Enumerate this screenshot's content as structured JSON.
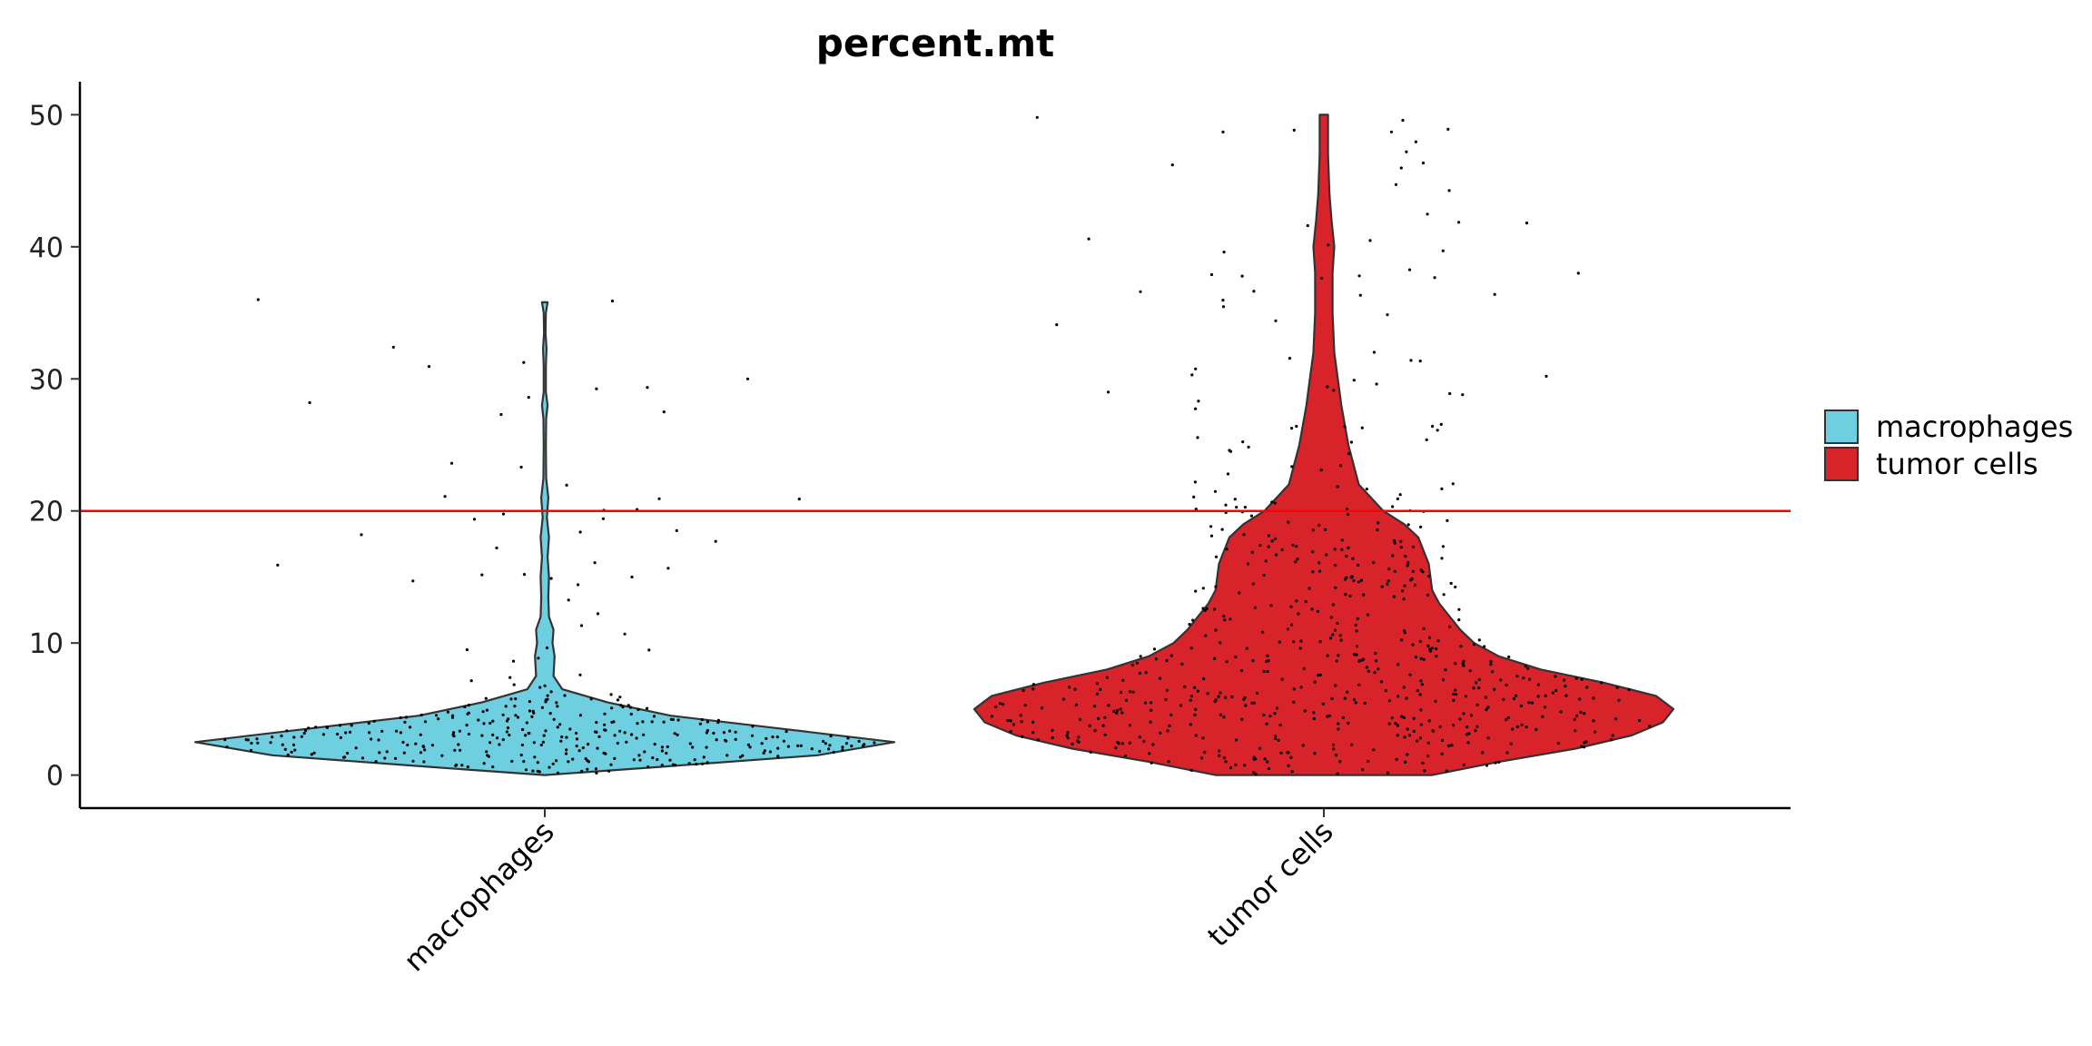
{
  "chart_data": {
    "type": "violin",
    "title": "percent.mt",
    "xlabel": "",
    "ylabel": "",
    "ylim": [
      -2.5,
      52.5
    ],
    "yticks": [
      0,
      10,
      20,
      30,
      40,
      50
    ],
    "categories": [
      "macrophages",
      "tumor cells"
    ],
    "threshold": {
      "value": 20,
      "color": "#ff0000"
    },
    "legend": {
      "position": "right",
      "entries": [
        "macrophages",
        "tumor cells"
      ]
    },
    "grid": false,
    "series": [
      {
        "name": "macrophages",
        "color": "#6dcfe0",
        "violin_profile": [
          [
            0,
            0.0
          ],
          [
            0.6,
            0.32
          ],
          [
            1.5,
            0.78
          ],
          [
            2.5,
            1.0
          ],
          [
            3.5,
            0.68
          ],
          [
            4.5,
            0.36
          ],
          [
            5.5,
            0.18
          ],
          [
            6.5,
            0.05
          ],
          [
            7.5,
            0.025
          ],
          [
            9,
            0.028
          ],
          [
            10,
            0.022
          ],
          [
            11,
            0.025
          ],
          [
            12,
            0.012
          ],
          [
            13.5,
            0.01
          ],
          [
            15,
            0.012
          ],
          [
            16.5,
            0.008
          ],
          [
            18,
            0.012
          ],
          [
            19.5,
            0.006
          ],
          [
            21,
            0.01
          ],
          [
            22.5,
            0.004
          ],
          [
            25,
            0.003
          ],
          [
            27,
            0.004
          ],
          [
            28,
            0.008
          ],
          [
            29,
            0.003
          ],
          [
            31,
            0.003
          ],
          [
            32.3,
            0.005
          ],
          [
            33.5,
            0.002
          ],
          [
            35,
            0.003
          ],
          [
            35.8,
            0.008
          ]
        ],
        "points_summary": {
          "n": 350,
          "median": 3,
          "max": 36,
          "outliers": [
            36.0,
            35.9,
            32.4,
            30.0,
            28.6,
            28.2,
            27.5,
            21.1,
            20.9,
            18.4,
            18.2,
            17.7,
            17.2,
            15.9,
            15.0,
            14.7
          ]
        }
      },
      {
        "name": "tumor cells",
        "color": "#d9232b",
        "violin_profile": [
          [
            0,
            0.31
          ],
          [
            1,
            0.5
          ],
          [
            2,
            0.72
          ],
          [
            3,
            0.88
          ],
          [
            4,
            0.97
          ],
          [
            5,
            1.0
          ],
          [
            6,
            0.95
          ],
          [
            7,
            0.8
          ],
          [
            8,
            0.62
          ],
          [
            9,
            0.5
          ],
          [
            10,
            0.43
          ],
          [
            11,
            0.39
          ],
          [
            12,
            0.36
          ],
          [
            13,
            0.33
          ],
          [
            14,
            0.31
          ],
          [
            16,
            0.3
          ],
          [
            18,
            0.27
          ],
          [
            19,
            0.23
          ],
          [
            20,
            0.17
          ],
          [
            22,
            0.1
          ],
          [
            25,
            0.07
          ],
          [
            28,
            0.05
          ],
          [
            30,
            0.04
          ],
          [
            32,
            0.03
          ],
          [
            35,
            0.025
          ],
          [
            38,
            0.025
          ],
          [
            40,
            0.03
          ],
          [
            42,
            0.022
          ],
          [
            44,
            0.016
          ],
          [
            47,
            0.012
          ],
          [
            50,
            0.012
          ]
        ],
        "points_summary": {
          "n": 600,
          "median": 6,
          "max": 50,
          "outliers": [
            49.8,
            48.7,
            46.2,
            41.8,
            41.6,
            40.6,
            39.7,
            39.6,
            38.0,
            37.8,
            36.6,
            36.4,
            34.4,
            34.1,
            31.4,
            30.3,
            30.2,
            29.4,
            29.0,
            28.8
          ]
        }
      }
    ]
  }
}
